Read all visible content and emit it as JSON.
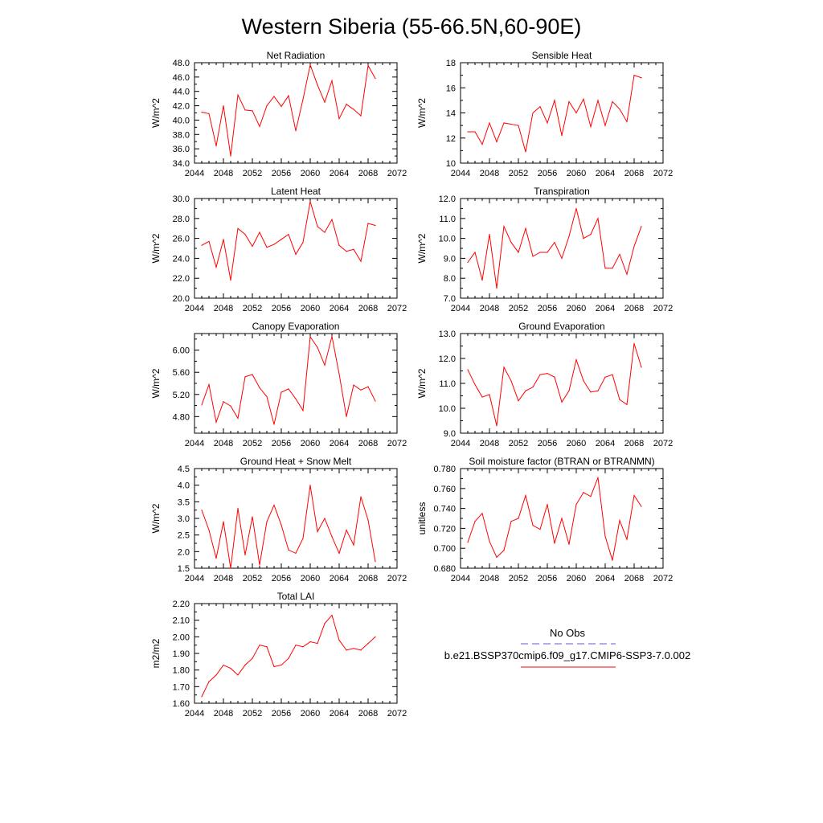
{
  "title": "Western Siberia (55-66.5N,60-90E)",
  "legend": {
    "items": [
      {
        "label": "No Obs",
        "color": "#5b5bd6",
        "dash": true
      },
      {
        "label": "b.e21.BSSP370cmip6.f09_g17.CMIP6-SSP3-7.0.002",
        "color": "#ff0000",
        "dash": false
      }
    ]
  },
  "colors": {
    "series": "#ff0000",
    "axis": "#000000"
  },
  "chart_data": [
    {
      "type": "line",
      "title": "Net Radiation",
      "ylabel": "W/m^2",
      "xlim": [
        2044,
        2072
      ],
      "xticks": [
        2044,
        2048,
        2052,
        2056,
        2060,
        2064,
        2068,
        2072
      ],
      "ylim": [
        34,
        48
      ],
      "yticks": [
        34,
        36,
        38,
        40,
        42,
        44,
        46,
        48
      ],
      "ydecimals": 1,
      "x": [
        2045,
        2046,
        2047,
        2048,
        2049,
        2050,
        2051,
        2052,
        2053,
        2054,
        2055,
        2056,
        2057,
        2058,
        2059,
        2060,
        2061,
        2062,
        2063,
        2064,
        2065,
        2066,
        2067,
        2068,
        2069
      ],
      "values": [
        41.1,
        40.9,
        36.4,
        42.0,
        35.0,
        43.5,
        41.4,
        41.3,
        39.1,
        42.0,
        43.3,
        41.9,
        43.4,
        38.5,
        42.9,
        47.7,
        44.9,
        42.5,
        45.5,
        40.2,
        42.2,
        41.5,
        40.6,
        47.6,
        45.8
      ]
    },
    {
      "type": "line",
      "title": "Sensible Heat",
      "ylabel": "W/m^2",
      "xlim": [
        2044,
        2072
      ],
      "xticks": [
        2044,
        2048,
        2052,
        2056,
        2060,
        2064,
        2068,
        2072
      ],
      "ylim": [
        10,
        18
      ],
      "yticks": [
        10,
        12,
        14,
        16,
        18
      ],
      "ydecimals": 0,
      "x": [
        2045,
        2046,
        2047,
        2048,
        2049,
        2050,
        2051,
        2052,
        2053,
        2054,
        2055,
        2056,
        2057,
        2058,
        2059,
        2060,
        2061,
        2062,
        2063,
        2064,
        2065,
        2066,
        2067,
        2068,
        2069
      ],
      "values": [
        12.5,
        12.5,
        11.5,
        13.2,
        11.7,
        13.2,
        13.1,
        13.0,
        10.9,
        14.0,
        14.5,
        13.2,
        15.0,
        12.2,
        14.9,
        14.0,
        15.1,
        12.9,
        15.0,
        13.0,
        14.9,
        14.3,
        13.3,
        17.0,
        16.8
      ]
    },
    {
      "type": "line",
      "title": "Latent Heat",
      "ylabel": "W/m^2",
      "xlim": [
        2044,
        2072
      ],
      "xticks": [
        2044,
        2048,
        2052,
        2056,
        2060,
        2064,
        2068,
        2072
      ],
      "ylim": [
        20,
        30
      ],
      "yticks": [
        20,
        22,
        24,
        26,
        28,
        30
      ],
      "ydecimals": 1,
      "x": [
        2045,
        2046,
        2047,
        2048,
        2049,
        2050,
        2051,
        2052,
        2053,
        2054,
        2055,
        2056,
        2057,
        2058,
        2059,
        2060,
        2061,
        2062,
        2063,
        2064,
        2065,
        2066,
        2067,
        2068,
        2069
      ],
      "values": [
        25.3,
        25.7,
        23.1,
        25.9,
        21.8,
        27.0,
        26.4,
        25.2,
        26.6,
        25.1,
        25.4,
        25.9,
        26.4,
        24.4,
        25.6,
        29.7,
        27.2,
        26.6,
        27.9,
        25.3,
        24.7,
        24.9,
        23.7,
        27.5,
        27.3
      ]
    },
    {
      "type": "line",
      "title": "Transpiration",
      "ylabel": "W/m^2",
      "xlim": [
        2044,
        2072
      ],
      "xticks": [
        2044,
        2048,
        2052,
        2056,
        2060,
        2064,
        2068,
        2072
      ],
      "ylim": [
        7,
        12
      ],
      "yticks": [
        7,
        8,
        9,
        10,
        11,
        12
      ],
      "ydecimals": 1,
      "x": [
        2045,
        2046,
        2047,
        2048,
        2049,
        2050,
        2051,
        2052,
        2053,
        2054,
        2055,
        2056,
        2057,
        2058,
        2059,
        2060,
        2061,
        2062,
        2063,
        2064,
        2065,
        2066,
        2067,
        2068,
        2069
      ],
      "values": [
        8.8,
        9.3,
        7.9,
        10.2,
        7.5,
        10.6,
        9.8,
        9.3,
        10.5,
        9.1,
        9.3,
        9.3,
        9.8,
        9.0,
        10.1,
        11.5,
        10.0,
        10.2,
        11.0,
        8.5,
        8.5,
        9.2,
        8.2,
        9.6,
        10.6
      ]
    },
    {
      "type": "line",
      "title": "Canopy Evaporation",
      "ylabel": "W/m^2",
      "xlim": [
        2044,
        2072
      ],
      "xticks": [
        2044,
        2048,
        2052,
        2056,
        2060,
        2064,
        2068,
        2072
      ],
      "ylim": [
        4.5,
        6.3
      ],
      "yticks": [
        4.8,
        5.2,
        5.6,
        6.0
      ],
      "ydecimals": 2,
      "x": [
        2045,
        2046,
        2047,
        2048,
        2049,
        2050,
        2051,
        2052,
        2053,
        2054,
        2055,
        2056,
        2057,
        2058,
        2059,
        2060,
        2061,
        2062,
        2063,
        2064,
        2065,
        2066,
        2067,
        2068,
        2069
      ],
      "values": [
        5.01,
        5.38,
        4.7,
        5.07,
        4.99,
        4.77,
        5.52,
        5.56,
        5.32,
        5.16,
        4.66,
        5.24,
        5.3,
        5.12,
        4.91,
        6.24,
        6.05,
        5.73,
        6.25,
        5.57,
        4.8,
        5.37,
        5.28,
        5.34,
        5.08
      ]
    },
    {
      "type": "line",
      "title": "Ground Evaporation",
      "ylabel": "W/m^2",
      "xlim": [
        2044,
        2072
      ],
      "xticks": [
        2044,
        2048,
        2052,
        2056,
        2060,
        2064,
        2068,
        2072
      ],
      "ylim": [
        9,
        13
      ],
      "yticks": [
        9,
        10,
        11,
        12,
        13
      ],
      "ydecimals": 1,
      "x": [
        2045,
        2046,
        2047,
        2048,
        2049,
        2050,
        2051,
        2052,
        2053,
        2054,
        2055,
        2056,
        2057,
        2058,
        2059,
        2060,
        2061,
        2062,
        2063,
        2064,
        2065,
        2066,
        2067,
        2068,
        2069
      ],
      "values": [
        11.55,
        10.95,
        10.45,
        10.55,
        9.3,
        11.65,
        11.1,
        10.3,
        10.7,
        10.85,
        11.35,
        11.4,
        11.25,
        10.25,
        10.7,
        11.95,
        11.1,
        10.65,
        10.7,
        11.25,
        11.35,
        10.35,
        10.15,
        12.6,
        11.65
      ]
    },
    {
      "type": "line",
      "title": "Ground Heat + Snow Melt",
      "ylabel": "W/m^2",
      "xlim": [
        2044,
        2072
      ],
      "xticks": [
        2044,
        2048,
        2052,
        2056,
        2060,
        2064,
        2068,
        2072
      ],
      "ylim": [
        1.5,
        4.5
      ],
      "yticks": [
        1.5,
        2.0,
        2.5,
        3.0,
        3.5,
        4.0,
        4.5
      ],
      "ydecimals": 1,
      "x": [
        2045,
        2046,
        2047,
        2048,
        2049,
        2050,
        2051,
        2052,
        2053,
        2054,
        2055,
        2056,
        2057,
        2058,
        2059,
        2060,
        2061,
        2062,
        2063,
        2064,
        2065,
        2066,
        2067,
        2068,
        2069
      ],
      "values": [
        3.25,
        2.65,
        1.8,
        2.9,
        1.5,
        3.3,
        1.9,
        3.05,
        1.6,
        2.9,
        3.4,
        2.8,
        2.05,
        1.95,
        2.4,
        4.0,
        2.6,
        3.0,
        2.45,
        1.95,
        2.65,
        2.2,
        3.65,
        2.95,
        1.7
      ]
    },
    {
      "type": "line",
      "title": "Soil moisture factor (BTRAN or BTRANMN)",
      "ylabel": "unitless",
      "xlim": [
        2044,
        2072
      ],
      "xticks": [
        2044,
        2048,
        2052,
        2056,
        2060,
        2064,
        2068,
        2072
      ],
      "ylim": [
        0.68,
        0.78
      ],
      "yticks": [
        0.68,
        0.7,
        0.72,
        0.74,
        0.76,
        0.78
      ],
      "ydecimals": 3,
      "x": [
        2045,
        2046,
        2047,
        2048,
        2049,
        2050,
        2051,
        2052,
        2053,
        2054,
        2055,
        2056,
        2057,
        2058,
        2059,
        2060,
        2061,
        2062,
        2063,
        2064,
        2065,
        2066,
        2067,
        2068,
        2069
      ],
      "values": [
        0.706,
        0.727,
        0.735,
        0.707,
        0.691,
        0.698,
        0.727,
        0.73,
        0.753,
        0.723,
        0.719,
        0.744,
        0.705,
        0.73,
        0.704,
        0.744,
        0.756,
        0.752,
        0.771,
        0.712,
        0.688,
        0.728,
        0.709,
        0.753,
        0.742
      ]
    },
    {
      "type": "line",
      "title": "Total LAI",
      "ylabel": "m2/m2",
      "xlim": [
        2044,
        2072
      ],
      "xticks": [
        2044,
        2048,
        2052,
        2056,
        2060,
        2064,
        2068,
        2072
      ],
      "ylim": [
        1.6,
        2.2
      ],
      "yticks": [
        1.6,
        1.7,
        1.8,
        1.9,
        2.0,
        2.1,
        2.2
      ],
      "ydecimals": 2,
      "x": [
        2045,
        2046,
        2047,
        2048,
        2049,
        2050,
        2051,
        2052,
        2053,
        2054,
        2055,
        2056,
        2057,
        2058,
        2059,
        2060,
        2061,
        2062,
        2063,
        2064,
        2065,
        2066,
        2067,
        2068,
        2069
      ],
      "values": [
        1.64,
        1.73,
        1.77,
        1.83,
        1.81,
        1.77,
        1.83,
        1.87,
        1.95,
        1.94,
        1.82,
        1.83,
        1.87,
        1.95,
        1.94,
        1.97,
        1.96,
        2.08,
        2.13,
        1.98,
        1.92,
        1.93,
        1.92,
        1.96,
        2.0
      ]
    }
  ]
}
